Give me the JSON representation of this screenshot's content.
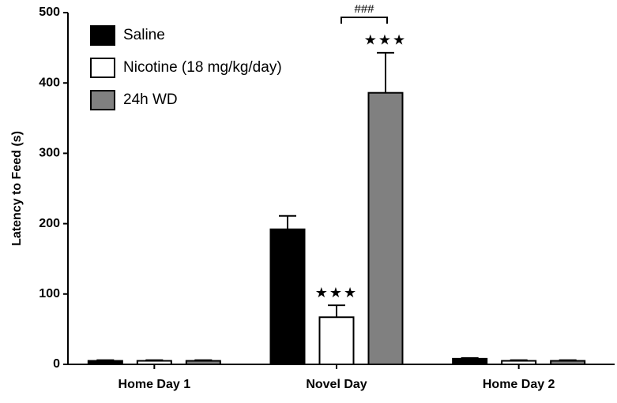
{
  "chart_data": {
    "type": "bar",
    "ylabel": "Latency to Feed (s)",
    "categories": [
      "Home Day 1",
      "Novel Day",
      "Home Day 2"
    ],
    "series": [
      {
        "name": "Saline",
        "color": "#000000",
        "values": [
          5,
          192,
          8
        ],
        "errors": [
          1,
          19,
          1
        ]
      },
      {
        "name": "Nicotine (18 mg/kg/day)",
        "color": "#ffffff",
        "values": [
          5,
          67,
          5
        ],
        "errors": [
          1,
          17,
          1
        ]
      },
      {
        "name": "24h WD",
        "color": "#808080",
        "values": [
          5,
          386,
          5
        ],
        "errors": [
          1,
          57,
          1
        ]
      }
    ],
    "ylim": [
      0,
      500
    ],
    "yticks": [
      0,
      100,
      200,
      300,
      400,
      500
    ],
    "grid": false,
    "legend": "upper left",
    "annotations": [
      {
        "text": "★★★"
      },
      {
        "text": "★★★"
      },
      {
        "text": "###"
      }
    ]
  }
}
